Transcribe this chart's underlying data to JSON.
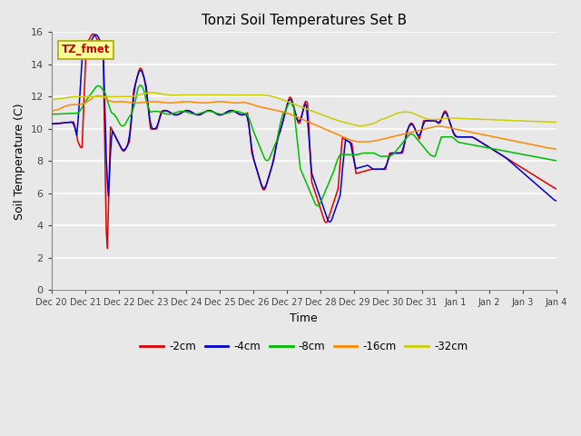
{
  "title": "Tonzi Soil Temperatures Set B",
  "xlabel": "Time",
  "ylabel": "Soil Temperature (C)",
  "ylim": [
    0,
    16
  ],
  "yticks": [
    0,
    2,
    4,
    6,
    8,
    10,
    12,
    14,
    16
  ],
  "x_labels": [
    "Dec 20",
    "Dec 21",
    "Dec 22",
    "Dec 23",
    "Dec 24",
    "Dec 25",
    "Dec 26",
    "Dec 27",
    "Dec 28",
    "Dec 29",
    "Dec 30",
    "Dec 31",
    "Jan 1",
    "Jan 2",
    "Jan 3",
    "Jan 4"
  ],
  "annotation_text": "TZ_fmet",
  "annotation_color": "#cc0000",
  "annotation_bg": "#ffff99",
  "annotation_border": "#aaaa00",
  "series_colors": [
    "#dd0000",
    "#0000cc",
    "#00bb00",
    "#ff8800",
    "#cccc00"
  ],
  "series_labels": [
    "-2cm",
    "-4cm",
    "-8cm",
    "-16cm",
    "-32cm"
  ],
  "bg_color": "#e8e8e8",
  "grid_color": "#ffffff",
  "n_points": 480
}
